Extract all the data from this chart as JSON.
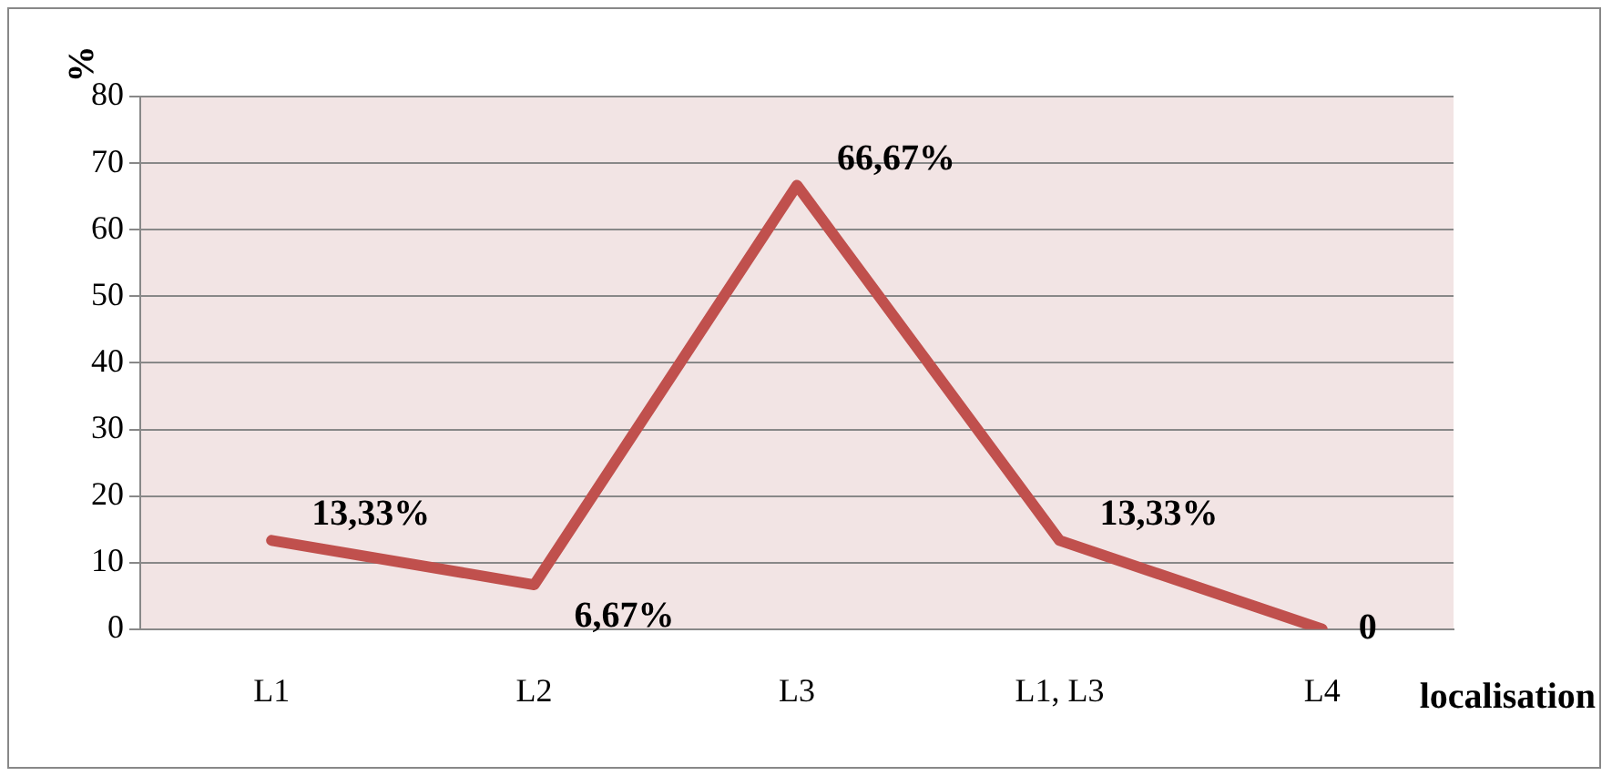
{
  "chart_data": {
    "type": "line",
    "ylabel": "%",
    "xlabel": "localisation",
    "categories": [
      "L1",
      "L2",
      "L3",
      "L1, L3",
      "L4"
    ],
    "series": [
      {
        "color": "#c0504d",
        "values": [
          13.33,
          6.67,
          66.67,
          13.33,
          0
        ],
        "value_labels": [
          "13,33%",
          "6,67%",
          "66,67%",
          "13,33%",
          "0"
        ]
      }
    ],
    "ylim": [
      0,
      80
    ],
    "yticks": [
      0,
      10,
      20,
      30,
      40,
      50,
      60,
      70,
      80
    ],
    "grid": "y",
    "legend": false,
    "marker": "none"
  }
}
